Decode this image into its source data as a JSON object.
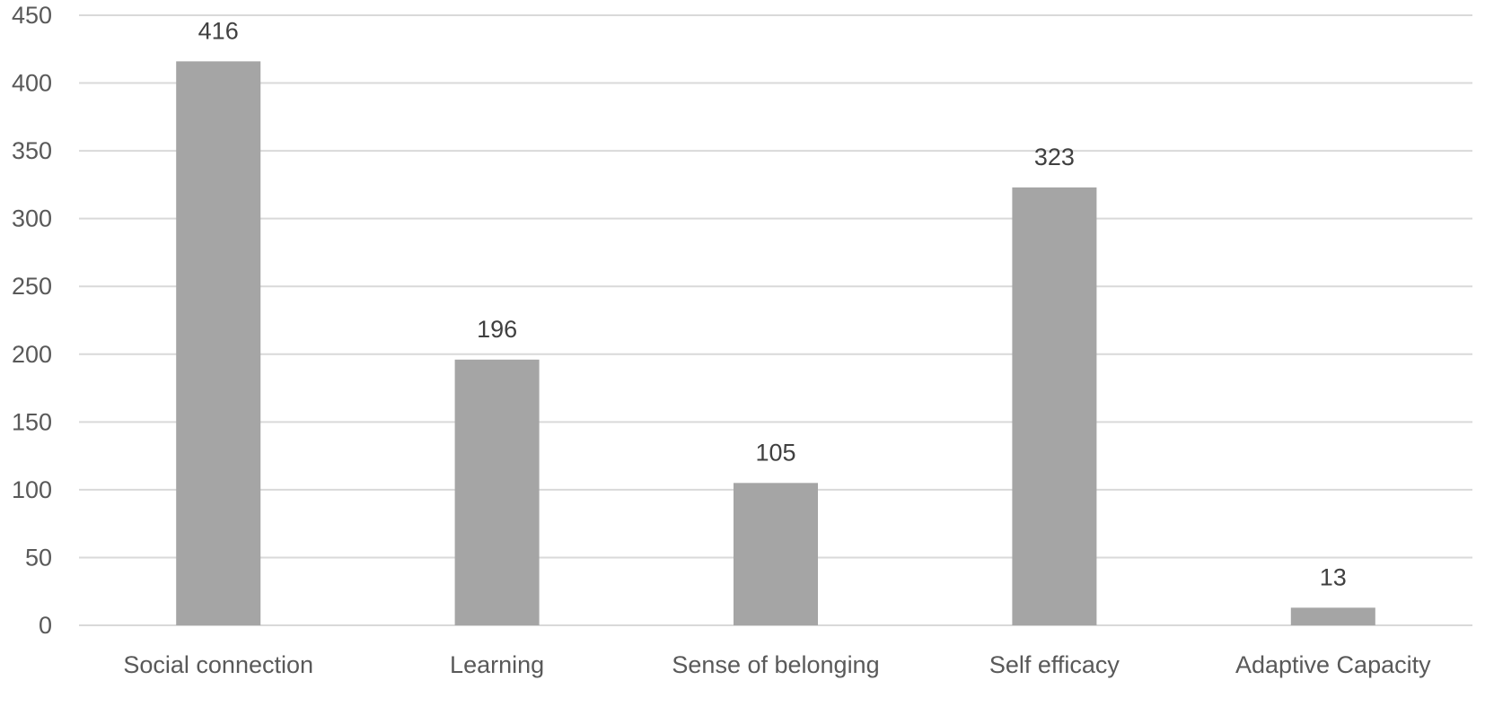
{
  "chart_data": {
    "type": "bar",
    "categories": [
      "Social connection",
      "Learning",
      "Sense of belonging",
      "Self efficacy",
      "Adaptive Capacity"
    ],
    "values": [
      416,
      196,
      105,
      323,
      13
    ],
    "data_labels": [
      "416",
      "196",
      "105",
      "323",
      "13"
    ],
    "yticks": [
      0,
      50,
      100,
      150,
      200,
      250,
      300,
      350,
      400,
      450
    ],
    "ylim": [
      0,
      450
    ],
    "title": "",
    "xlabel": "",
    "ylabel": "",
    "grid": true,
    "legend": "none",
    "bar_color": "#a5a5a5",
    "grid_color": "#d9d9d9",
    "text_color": "#595959"
  }
}
